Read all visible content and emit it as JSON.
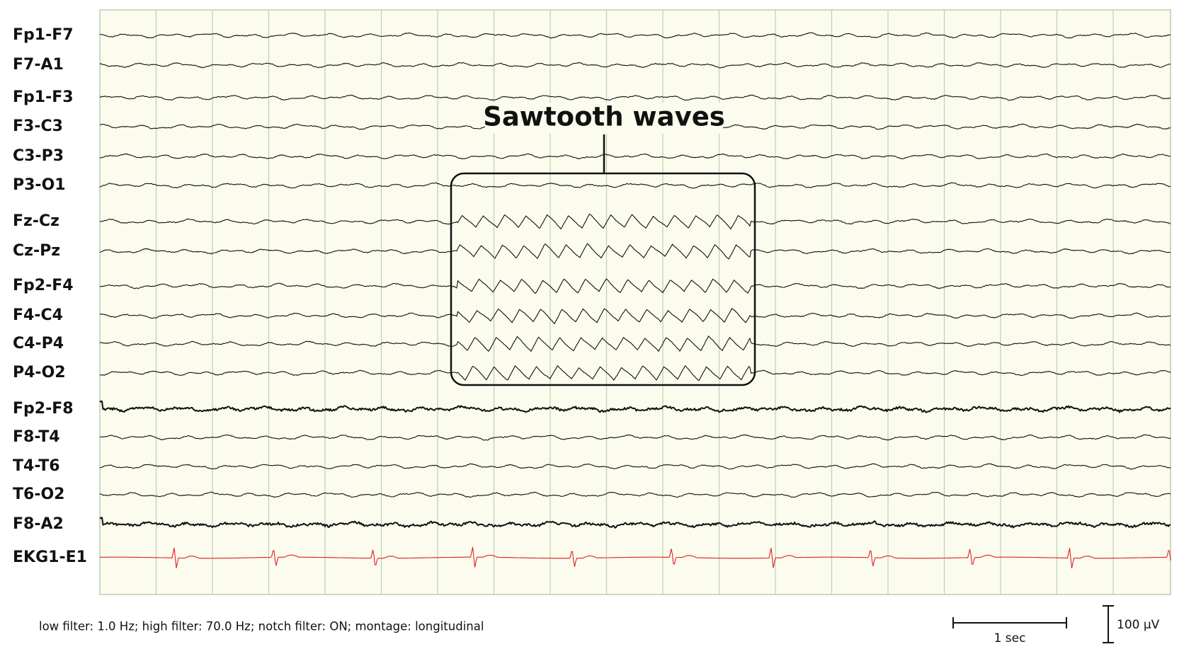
{
  "channels": [
    "Fp1-F7",
    "F7-A1",
    "Fp1-F3",
    "F3-C3",
    "C3-P3",
    "P3-O1",
    "Fz-Cz",
    "Cz-Pz",
    "Fp2-F4",
    "F4-C4",
    "C4-P4",
    "P4-O2",
    "Fp2-F8",
    "F8-T4",
    "T4-T6",
    "T6-O2",
    "F8-A2",
    "EKG1-E1"
  ],
  "annotation": "Sawtooth waves",
  "footer": "low filter: 1.0 Hz; high filter: 70.0 Hz; notch filter: ON; montage: longitudinal",
  "time_scale": "1 sec",
  "amplitude_scale": "100 µV"
}
